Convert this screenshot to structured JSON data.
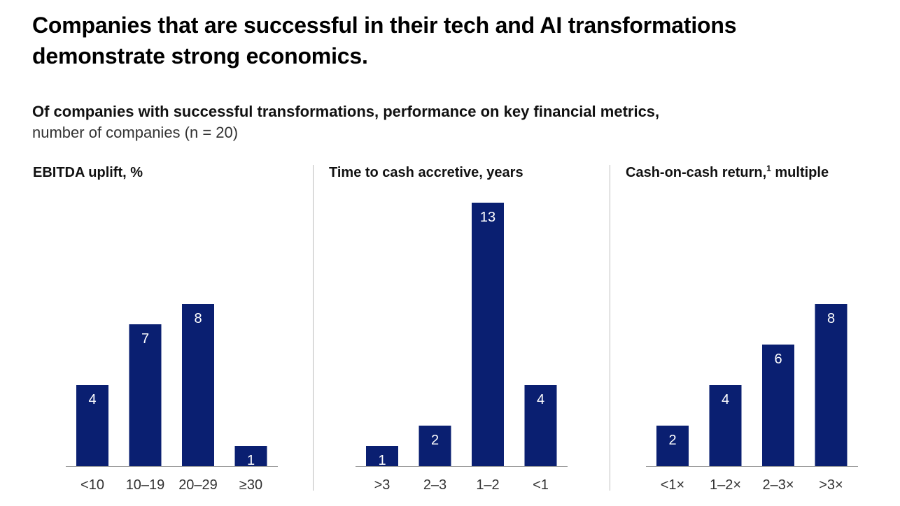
{
  "title": "Companies that are successful in their tech and AI transformations demonstrate strong economics.",
  "subtitle": "Of companies with successful transformations, performance on key financial metrics,",
  "subtitle_note": "number of companies (n = 20)",
  "colors": {
    "bar": "#0a1f71",
    "axis": "#9e9e9e",
    "divider": "#bdbdbd",
    "value_label": "#ffffff"
  },
  "chart_data": [
    {
      "type": "bar",
      "title": "EBITDA uplift, %",
      "categories": [
        "<10",
        "10–19",
        "20–29",
        "≥30"
      ],
      "values": [
        4,
        7,
        8,
        1
      ]
    },
    {
      "type": "bar",
      "title": "Time to cash accretive, years",
      "categories": [
        ">3",
        "2–3",
        "1–2",
        "<1"
      ],
      "values": [
        1,
        2,
        13,
        4
      ]
    },
    {
      "type": "bar",
      "title": "Cash-on-cash return,",
      "title_footnote": "1",
      "title_suffix": " multiple",
      "categories": [
        "<1×",
        "1–2×",
        "2–3×",
        ">3×"
      ],
      "values": [
        2,
        4,
        6,
        8
      ]
    }
  ]
}
